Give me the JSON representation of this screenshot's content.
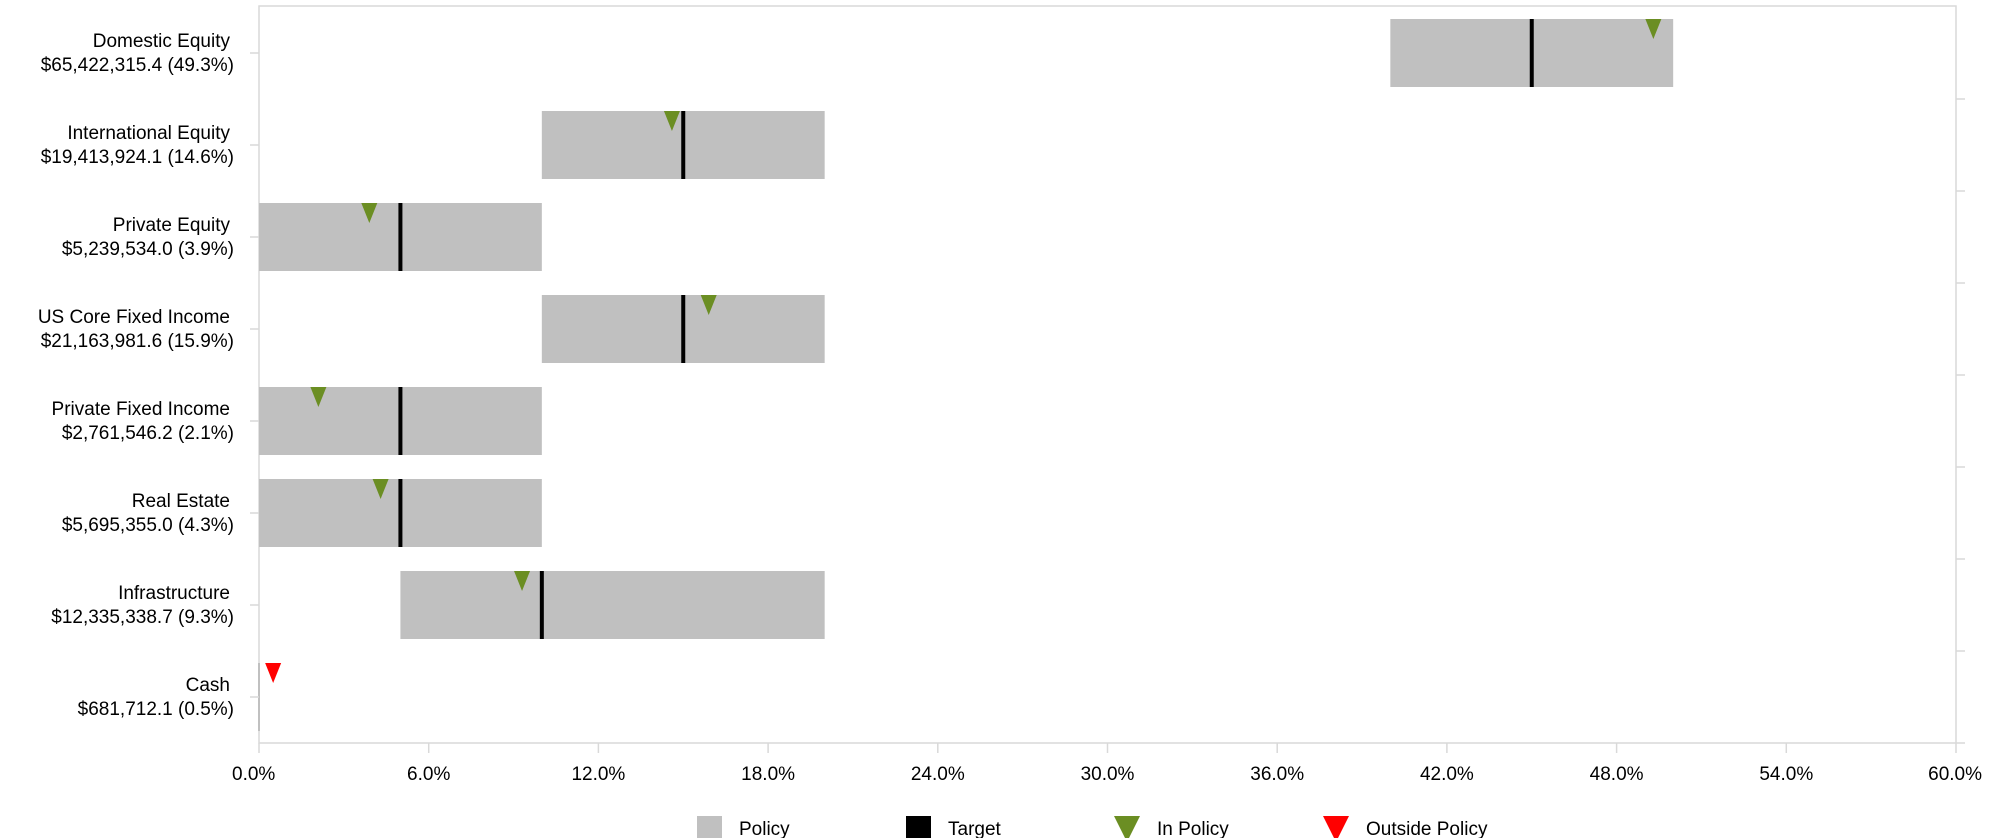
{
  "chart_data": {
    "type": "bar",
    "orientation": "horizontal",
    "x_axis": {
      "min": 0,
      "max": 60,
      "ticks": [
        0,
        6,
        12,
        18,
        24,
        30,
        36,
        42,
        48,
        54,
        60
      ],
      "tick_labels": [
        "0.0%",
        "6.0%",
        "12.0%",
        "18.0%",
        "24.0%",
        "30.0%",
        "36.0%",
        "42.0%",
        "48.0%",
        "54.0%",
        "60.0%"
      ]
    },
    "grid": false,
    "legend_position": "bottom",
    "legend": [
      {
        "key": "policy",
        "label": "Policy"
      },
      {
        "key": "target",
        "label": "Target"
      },
      {
        "key": "in_policy",
        "label": "In Policy"
      },
      {
        "key": "outside_policy",
        "label": "Outside Policy"
      }
    ],
    "colors": {
      "policy": "#c0c0c0",
      "target": "#000000",
      "in_policy": "#6b8e23",
      "outside_policy": "#ff0000",
      "axis": "#d9d9d9"
    },
    "categories": [
      {
        "name": "Domestic Equity",
        "value_label": "$65,422,315.4 (49.3%)",
        "policy_min": 40,
        "policy_max": 50,
        "target": 45,
        "actual": 49.3,
        "status": "in_policy"
      },
      {
        "name": "International Equity",
        "value_label": "$19,413,924.1 (14.6%)",
        "policy_min": 10,
        "policy_max": 20,
        "target": 15,
        "actual": 14.6,
        "status": "in_policy"
      },
      {
        "name": "Private Equity",
        "value_label": "$5,239,534.0 (3.9%)",
        "policy_min": 0,
        "policy_max": 10,
        "target": 5,
        "actual": 3.9,
        "status": "in_policy"
      },
      {
        "name": "US Core Fixed Income",
        "value_label": "$21,163,981.6 (15.9%)",
        "policy_min": 10,
        "policy_max": 20,
        "target": 15,
        "actual": 15.9,
        "status": "in_policy"
      },
      {
        "name": "Private Fixed Income",
        "value_label": "$2,761,546.2 (2.1%)",
        "policy_min": 0,
        "policy_max": 10,
        "target": 5,
        "actual": 2.1,
        "status": "in_policy"
      },
      {
        "name": "Real Estate",
        "value_label": "$5,695,355.0 (4.3%)",
        "policy_min": 0,
        "policy_max": 10,
        "target": 5,
        "actual": 4.3,
        "status": "in_policy"
      },
      {
        "name": "Infrastructure",
        "value_label": "$12,335,338.7 (9.3%)",
        "policy_min": 5,
        "policy_max": 20,
        "target": 10,
        "actual": 9.3,
        "status": "in_policy"
      },
      {
        "name": "Cash",
        "value_label": "$681,712.1 (0.5%)",
        "policy_min": 0,
        "policy_max": 0,
        "target": 0,
        "actual": 0.5,
        "status": "outside_policy"
      }
    ]
  }
}
